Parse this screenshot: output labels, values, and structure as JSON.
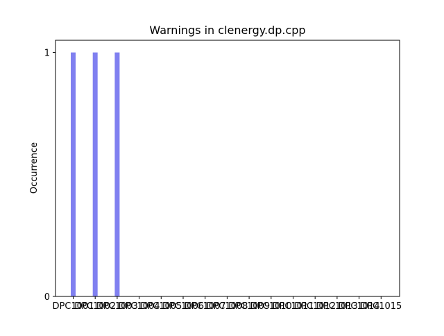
{
  "chart_data": {
    "type": "bar",
    "title": "Warnings in clenergy.dp.cpp",
    "xlabel": "",
    "ylabel": "Occurrence",
    "categories": [
      "DPC1001",
      "DPC1002",
      "DPC1003",
      "DPC1004",
      "DPC1005",
      "DPC1006",
      "DPC1007",
      "DPC1008",
      "DPC1009",
      "DPC1010",
      "DPC1011",
      "DPC1012",
      "DPC1013",
      "DPC1014",
      "DPC1015"
    ],
    "values": [
      1,
      1,
      1,
      0,
      0,
      0,
      0,
      0,
      0,
      0,
      0,
      0,
      0,
      0,
      0
    ],
    "ylim": [
      0,
      1.05
    ],
    "yticks": [
      0,
      1
    ],
    "grid": false,
    "bar_color": "#8080f0"
  }
}
